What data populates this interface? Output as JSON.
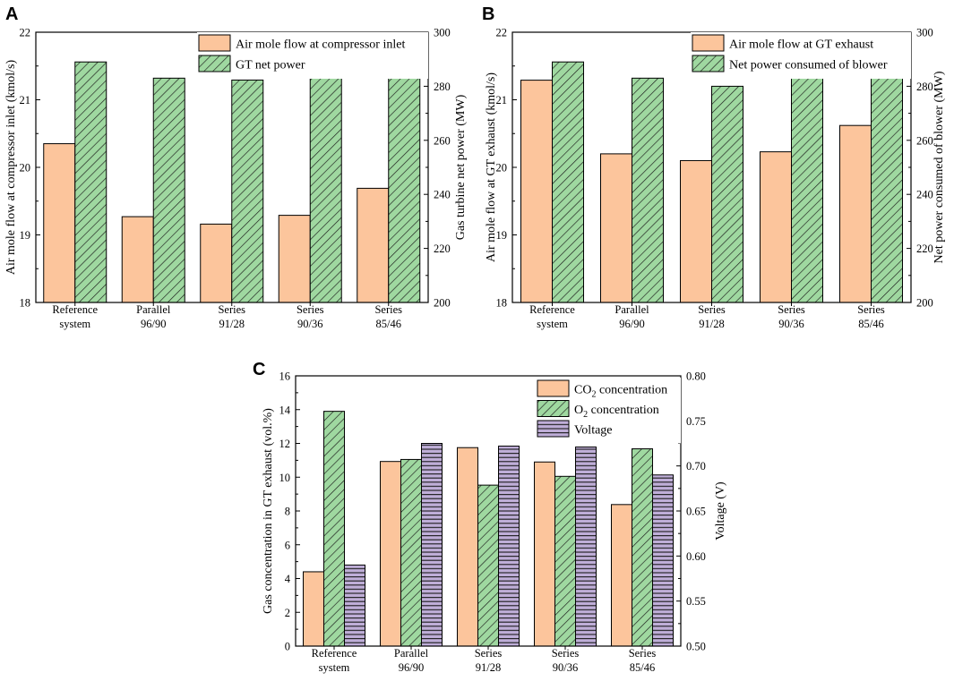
{
  "colors": {
    "orange": "#fcc59c",
    "green": "#9fd8a0",
    "purple": "#bfaed8",
    "hatch": "#1a1a1a"
  },
  "chart_data": [
    {
      "panel": "A",
      "type": "bar",
      "categories": [
        [
          "Reference",
          "system"
        ],
        [
          "Parallel",
          "96/90"
        ],
        [
          "Series",
          "91/28"
        ],
        [
          "Series",
          "90/36"
        ],
        [
          "Series",
          "85/46"
        ]
      ],
      "ylabel_left": "Air mole flow at compressor inlet (kmol/s)",
      "ylabel_right": "Gas turbine net power (MW)",
      "ylim_left": [
        18,
        22
      ],
      "yticks_left": [
        "18",
        "19",
        "20",
        "21",
        "22"
      ],
      "ylim_right": [
        200,
        300
      ],
      "yticks_right": [
        "200",
        "220",
        "240",
        "260",
        "280",
        "300"
      ],
      "series": [
        {
          "name": "Air mole flow at compressor inlet",
          "axis": "left",
          "fill": "orange",
          "pattern": "solid",
          "values": [
            20.35,
            19.27,
            19.16,
            19.29,
            19.69
          ]
        },
        {
          "name": "GT net power",
          "axis": "right",
          "fill": "green",
          "pattern": "diagonal",
          "values": [
            289.0,
            283.0,
            282.3,
            283.0,
            285.3
          ]
        }
      ]
    },
    {
      "panel": "B",
      "type": "bar",
      "categories": [
        [
          "Reference",
          "system"
        ],
        [
          "Parallel",
          "96/90"
        ],
        [
          "Series",
          "91/28"
        ],
        [
          "Series",
          "90/36"
        ],
        [
          "Series",
          "85/46"
        ]
      ],
      "ylabel_left": "Air mole flow at GT exhaust (kmol/s)",
      "ylabel_right": "Net power consumed of blower (MW)",
      "ylim_left": [
        18,
        22
      ],
      "yticks_left": [
        "18",
        "19",
        "20",
        "21",
        "22"
      ],
      "ylim_right": [
        200,
        300
      ],
      "yticks_right": [
        "200",
        "220",
        "240",
        "260",
        "280",
        "300"
      ],
      "series": [
        {
          "name": "Air mole flow at GT exhaust",
          "axis": "left",
          "fill": "orange",
          "pattern": "solid",
          "values": [
            21.29,
            20.2,
            20.1,
            20.23,
            20.62
          ]
        },
        {
          "name": "Net power consumed of blower",
          "axis": "right",
          "fill": "green",
          "pattern": "diagonal",
          "values": [
            289.0,
            283.0,
            280.0,
            283.0,
            285.3
          ]
        }
      ]
    },
    {
      "panel": "C",
      "type": "bar",
      "categories": [
        [
          "Reference",
          "system"
        ],
        [
          "Parallel",
          "96/90"
        ],
        [
          "Series",
          "91/28"
        ],
        [
          "Series",
          "90/36"
        ],
        [
          "Series",
          "85/46"
        ]
      ],
      "ylabel_left": "Gas concentration in GT exhaust (vol.%)",
      "ylabel_right": "Voltage (V)",
      "ylim_left": [
        0,
        16
      ],
      "yticks_left": [
        "0",
        "2",
        "4",
        "6",
        "8",
        "10",
        "12",
        "14",
        "16"
      ],
      "ylim_right": [
        0.5,
        0.8
      ],
      "yticks_right": [
        "0.50",
        "0.55",
        "0.60",
        "0.65",
        "0.70",
        "0.75",
        "0.80"
      ],
      "series": [
        {
          "name": "CO",
          "subscript": "2",
          "suffix": " concentration",
          "axis": "left",
          "fill": "orange",
          "pattern": "solid",
          "values": [
            4.4,
            10.93,
            11.75,
            10.9,
            8.38
          ]
        },
        {
          "name": "O",
          "subscript": "2",
          "suffix": " concentration",
          "axis": "left",
          "fill": "green",
          "pattern": "diagonal",
          "values": [
            13.9,
            11.05,
            9.53,
            10.05,
            11.68
          ]
        },
        {
          "name": "Voltage",
          "axis": "right",
          "fill": "purple",
          "pattern": "horizontal",
          "values": [
            0.59,
            0.725,
            0.722,
            0.721,
            0.69
          ]
        }
      ]
    }
  ]
}
